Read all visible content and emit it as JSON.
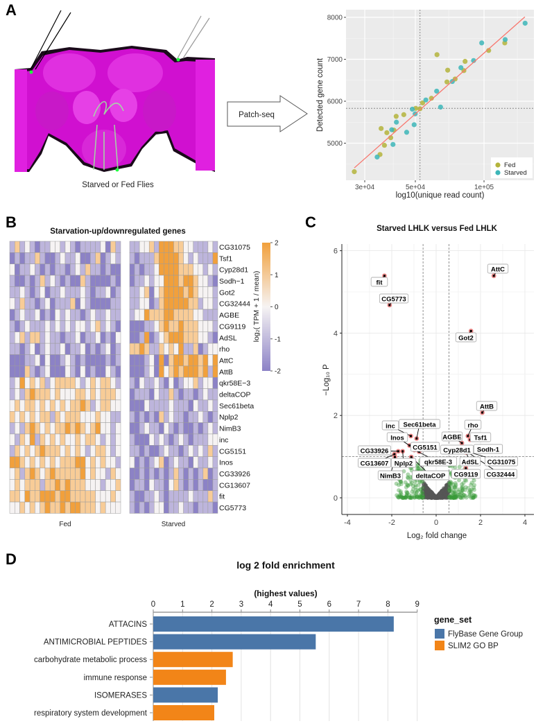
{
  "figure": {
    "panel_labels": [
      "A",
      "B",
      "C",
      "D"
    ],
    "panel_a": {
      "image_caption": "Starved or Fed Flies",
      "arrow_label": "Patch-seq"
    }
  },
  "colors": {
    "fed": "#b4b43c",
    "starved": "#3db6b8",
    "fit_line": "#f8766d",
    "heat_low": "#8c82c6",
    "heat_mid": "#f6f3f3",
    "heat_high": "#f1a03c",
    "volcano_sig": "#f08080",
    "volcano_fc": "#3a9a3a",
    "volcano_ns": "#555555",
    "flybase": "#4a76a8",
    "slim2": "#f28518"
  },
  "chart_data": [
    {
      "id": "scatter",
      "type": "scatter",
      "xlabel": "log10(unique read count)",
      "ylabel": "Detected gene count",
      "xscale": "log10",
      "xlim": [
        25000,
        165000
      ],
      "ylim": [
        4250,
        8100
      ],
      "xticks": [
        {
          "v": 30000,
          "label": "3e+04"
        },
        {
          "v": 50000,
          "label": "5e+04"
        },
        {
          "v": 100000,
          "label": "1e+05"
        }
      ],
      "yticks": [
        {
          "v": 5000,
          "label": "5000"
        },
        {
          "v": 6000,
          "label": "6000"
        },
        {
          "v": 7000,
          "label": "7000"
        },
        {
          "v": 8000,
          "label": "8000"
        }
      ],
      "reference_lines": {
        "x": 52400,
        "y": 5830
      },
      "fit_line": [
        [
          27000,
          4410
        ],
        [
          151000,
          8010
        ]
      ],
      "legend": {
        "position": "bottom-right"
      },
      "series": [
        {
          "name": "Fed",
          "points": [
            [
              27000,
              4320
            ],
            [
              35000,
              4730
            ],
            [
              35400,
              5350
            ],
            [
              36600,
              4950
            ],
            [
              37500,
              5250
            ],
            [
              39000,
              5130
            ],
            [
              40300,
              5310
            ],
            [
              41200,
              5640
            ],
            [
              44500,
              5680
            ],
            [
              50200,
              5830
            ],
            [
              52400,
              5820
            ],
            [
              53800,
              5960
            ],
            [
              58800,
              6070
            ],
            [
              62200,
              7110
            ],
            [
              68800,
              6460
            ],
            [
              69300,
              6740
            ],
            [
              74700,
              6530
            ],
            [
              81600,
              6730
            ],
            [
              82600,
              6950
            ],
            [
              104800,
              7210
            ],
            [
              123300,
              7390
            ]
          ]
        },
        {
          "name": "Starved",
          "points": [
            [
              34000,
              4670
            ],
            [
              39400,
              5320
            ],
            [
              39900,
              4970
            ],
            [
              41300,
              5500
            ],
            [
              45800,
              5260
            ],
            [
              48500,
              5810
            ],
            [
              49400,
              5440
            ],
            [
              49900,
              5700
            ],
            [
              55600,
              6030
            ],
            [
              62000,
              6240
            ],
            [
              64500,
              5860
            ],
            [
              72600,
              6470
            ],
            [
              79200,
              6800
            ],
            [
              90000,
              6970
            ],
            [
              97700,
              7390
            ],
            [
              123800,
              7470
            ],
            [
              151400,
              7860
            ]
          ]
        }
      ]
    },
    {
      "id": "heatmap",
      "type": "heatmap",
      "title": "Starvation-up/downregulated genes",
      "groups": [
        "Fed",
        "Starved"
      ],
      "colorbar": {
        "title": "log₂( TPM + 1 / mean)",
        "ticks": [
          "2",
          "1",
          "0",
          "-1",
          "-2"
        ],
        "range": [
          -2,
          2
        ]
      },
      "value_encoding": "each digit d maps to value d-2",
      "rows": [
        {
          "gene": "CG31075",
          "fed": "1312101122121011112031",
          "starved": "112231444332211121"
        },
        {
          "gene": "Tsf1",
          "fed": "0101131001211200130121",
          "starved": "101113444432121114"
        },
        {
          "gene": "Cyp28d1",
          "fed": "2011210101101213110100",
          "starved": "010112444433322121"
        },
        {
          "gene": "Sodh−1",
          "fed": "1001013121010031000010",
          "starved": "011212244434432210"
        },
        {
          "gene": "Got2",
          "fed": "1121012011211121011201",
          "starved": "112302344443432221"
        },
        {
          "gene": "CG32444",
          "fed": "2131101201113021000011",
          "starved": "112201344444331221"
        },
        {
          "gene": "AGBE",
          "fed": "0121120102121101211211",
          "starved": "122433344333322111"
        },
        {
          "gene": "CG9119",
          "fed": "1012111212121221231210",
          "starved": "000112343343332221"
        },
        {
          "gene": "AdSL",
          "fed": "1231331211011201120102",
          "starved": "001401234443332210"
        },
        {
          "gene": "rho",
          "fed": "1101201211201120101201",
          "starved": "334311323241130122"
        },
        {
          "gene": "AttC",
          "fed": "0001120200121010000101",
          "starved": "000120403443443424"
        },
        {
          "gene": "AttB",
          "fed": "0003101200021020100210",
          "starved": "000120423434443414"
        },
        {
          "gene": "qkr58E−3",
          "fed": "1242323123333212323321",
          "starved": "102112102012231220"
        },
        {
          "gene": "deltaCOP",
          "fed": "1213433323222332323332",
          "starved": "011102113101101211"
        },
        {
          "gene": "Sec61beta",
          "fed": "2323323232323343123322",
          "starved": "000211112111021121"
        },
        {
          "gene": "Nplp2",
          "fed": "3232323313233322232211",
          "starved": "101010312110112101"
        },
        {
          "gene": "NimB3",
          "fed": "1213432323343432342212",
          "starved": "001211021010010121"
        },
        {
          "gene": "inc",
          "fed": "2132413232322323321212",
          "starved": "100021210121011122"
        },
        {
          "gene": "CG5151",
          "fed": "1323234333232321233212",
          "starved": "110100121101212131"
        },
        {
          "gene": "Inos",
          "fed": "4432323232333442323221",
          "starved": "201012301211021121"
        },
        {
          "gene": "CG33926",
          "fed": "2313432343333342322132",
          "starved": "001010101310101301"
        },
        {
          "gene": "CG13607",
          "fed": "2323331334343332221223",
          "starved": "011021102310101001"
        },
        {
          "gene": "fit",
          "fed": "3324334443443333322232",
          "starved": "100112101111211131"
        },
        {
          "gene": "CG5773",
          "fed": "2232323433434433323222",
          "starved": "101012201121101110"
        }
      ]
    },
    {
      "id": "volcano",
      "type": "scatter",
      "title": "Starved LHLK versus Fed LHLK",
      "xlabel": "Log₂ fold change",
      "ylabel": "−Log₁₀ P",
      "xlim": [
        -4.3,
        4.4
      ],
      "ylim": [
        -0.35,
        6.1
      ],
      "xticks": [
        -4,
        -2,
        0,
        2,
        4
      ],
      "yticks": [
        0,
        2,
        4,
        6
      ],
      "thresholds": {
        "fold_change": [
          -0.59,
          0.58
        ],
        "p": 1.0
      },
      "labeled_points": [
        {
          "gene": "fit",
          "x": -2.33,
          "y": 5.39
        },
        {
          "gene": "CG5773",
          "x": -2.1,
          "y": 4.68
        },
        {
          "gene": "AttC",
          "x": 2.6,
          "y": 5.39
        },
        {
          "gene": "Got2",
          "x": 1.57,
          "y": 4.05
        },
        {
          "gene": "AttB",
          "x": 2.08,
          "y": 2.07
        },
        {
          "gene": "rho",
          "x": 1.43,
          "y": 1.5
        },
        {
          "gene": "Tsf1",
          "x": 1.53,
          "y": 1.41
        },
        {
          "gene": "Sodh-1",
          "x": 1.58,
          "y": 1.2
        },
        {
          "gene": "AGBE",
          "x": 1.16,
          "y": 1.33
        },
        {
          "gene": "Cyp28d1",
          "x": 1.31,
          "y": 1.14
        },
        {
          "gene": "CG31075",
          "x": 1.36,
          "y": 1.13
        },
        {
          "gene": "AdSL",
          "x": 1.35,
          "y": 1.1
        },
        {
          "gene": "CG32444",
          "x": 1.38,
          "y": 1.12
        },
        {
          "gene": "CG9119",
          "x": 1.34,
          "y": 0.72
        },
        {
          "gene": "inc",
          "x": -1.14,
          "y": 1.5
        },
        {
          "gene": "Sec61beta",
          "x": -0.88,
          "y": 1.44
        },
        {
          "gene": "Inos",
          "x": -1.2,
          "y": 1.27
        },
        {
          "gene": "CG5151",
          "x": -0.77,
          "y": 1.12
        },
        {
          "gene": "CG33926",
          "x": -1.71,
          "y": 1.13
        },
        {
          "gene": "CG13607",
          "x": -1.88,
          "y": 1.06
        },
        {
          "gene": "Nplp2",
          "x": -1.51,
          "y": 1.13
        },
        {
          "gene": "qkr58E-3",
          "x": -0.98,
          "y": 1.16
        },
        {
          "gene": "NimB3",
          "x": -1.86,
          "y": 0.99
        },
        {
          "gene": "deltaCOP",
          "x": -1.12,
          "y": 0.99
        }
      ]
    },
    {
      "id": "enrichment",
      "type": "bar",
      "orientation": "horizontal",
      "title": "log 2 fold enrichment",
      "subtitle": "(highest values)",
      "xlim": [
        0,
        9
      ],
      "xticks": [
        "0",
        "1",
        "2",
        "3",
        "4",
        "5",
        "6",
        "7",
        "8",
        "9"
      ],
      "legend": {
        "title": "gene_set",
        "position": "right",
        "entries": [
          "FlyBase Gene Group",
          "SLIM2 GO BP"
        ]
      },
      "categories": [
        "ATTACINS",
        "ANTIMICROBIAL PEPTIDES",
        "carbohydrate metabolic process",
        "immune response",
        "ISOMERASES",
        "respiratory system development"
      ],
      "values": [
        8.2,
        5.54,
        2.71,
        2.48,
        2.2,
        2.08
      ],
      "gene_set": [
        "FlyBase Gene Group",
        "FlyBase Gene Group",
        "SLIM2 GO BP",
        "SLIM2 GO BP",
        "FlyBase Gene Group",
        "SLIM2 GO BP"
      ]
    }
  ]
}
